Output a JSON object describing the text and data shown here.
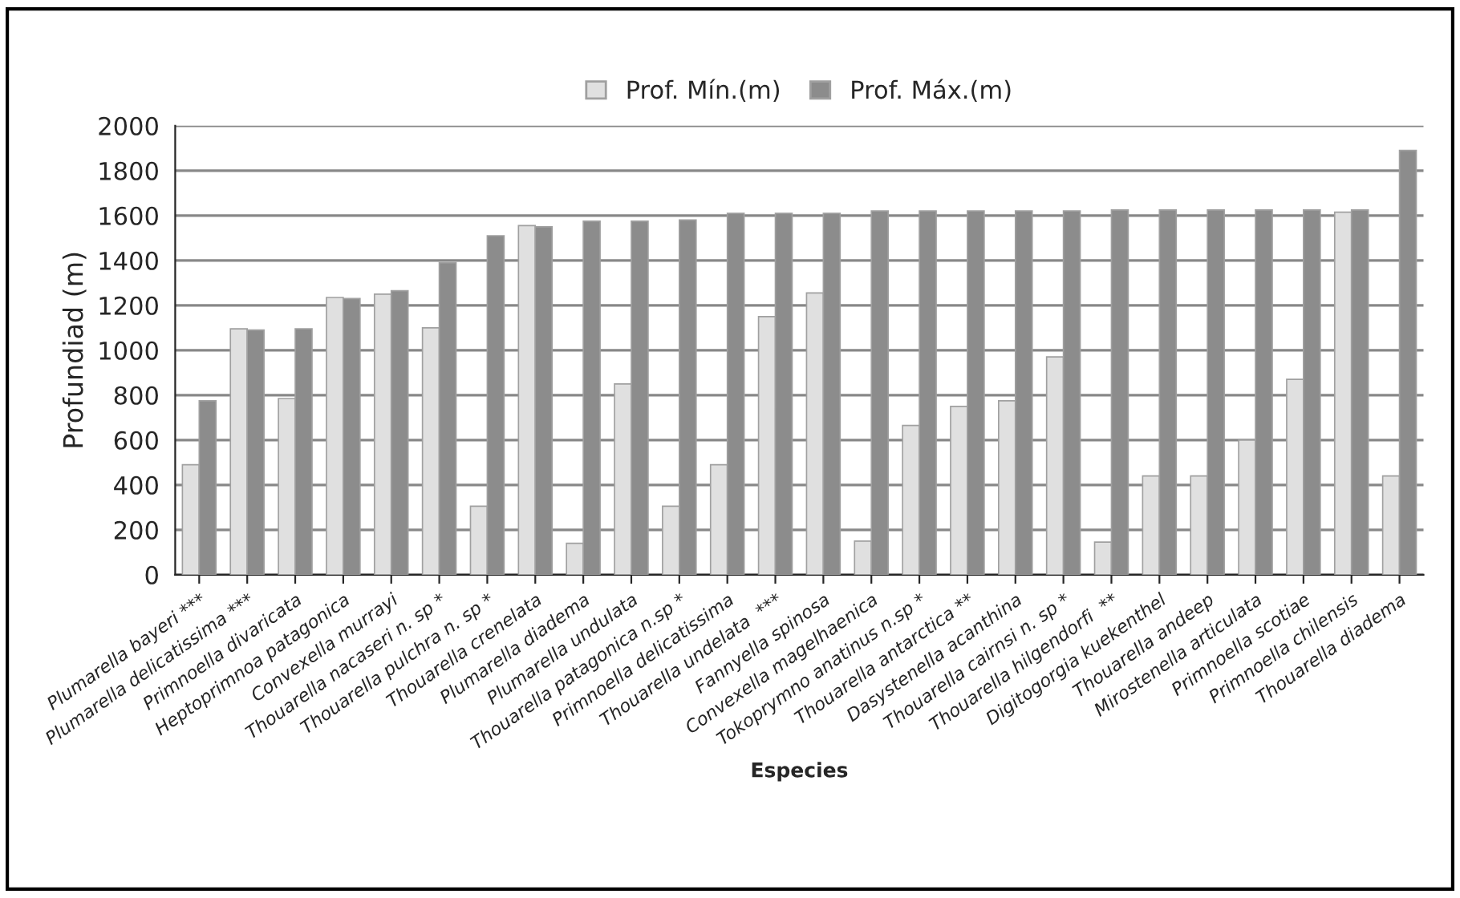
{
  "chart_data": {
    "type": "bar",
    "xlabel": "Especies",
    "ylabel": "Profundiad (m)",
    "categories": [
      "Plumarella bayeri ***",
      "Plumarella delicatissima ***",
      "Primnoella divaricata",
      "Heptoprimnoa patagonica",
      "Convexella murrayi",
      "Thouarella nacaseri n. sp *",
      "Thouarella pulchra n. sp *",
      "Thouarella crenelata",
      "Plumarella diadema",
      "Plumarella undulata",
      "Thouarella patagonica n.sp *",
      "Primnoella delicatissima",
      "Thouarella undelata  ***",
      "Fannyella spinosa",
      "Convexella magelhaenica",
      "Tokoprymno anatinus n.sp *",
      "Thouarella antarctica **",
      "Dasystenella acanthina",
      "Thouarella cairnsi n. sp *",
      "Thouarella hilgendorfi  **",
      "Digitogorgia kuekenthel",
      "Thouarella andeep",
      "Mirostenella articulata",
      "Primnoella scotiae",
      "Primnoella chilensis",
      "Thouarella diadema"
    ],
    "series": [
      {
        "name": "Prof. Mín.(m)",
        "color": "#e0e0e0",
        "values": [
          490,
          1095,
          785,
          1235,
          1250,
          1100,
          305,
          1555,
          140,
          850,
          305,
          490,
          1150,
          1255,
          150,
          665,
          750,
          775,
          970,
          145,
          440,
          440,
          600,
          870,
          1615,
          440
        ]
      },
      {
        "name": "Prof. Máx.(m)",
        "color": "#8c8c8c",
        "values": [
          775,
          1090,
          1095,
          1230,
          1265,
          1390,
          1510,
          1550,
          1575,
          1575,
          1580,
          1610,
          1610,
          1610,
          1620,
          1620,
          1620,
          1620,
          1620,
          1625,
          1625,
          1625,
          1625,
          1625,
          1625,
          1890
        ]
      }
    ],
    "ylim": [
      0,
      2000
    ],
    "yticks": [
      0,
      200,
      400,
      600,
      800,
      1000,
      1200,
      1400,
      1600,
      1800,
      2000
    ],
    "grid": "y",
    "legend": "top"
  }
}
